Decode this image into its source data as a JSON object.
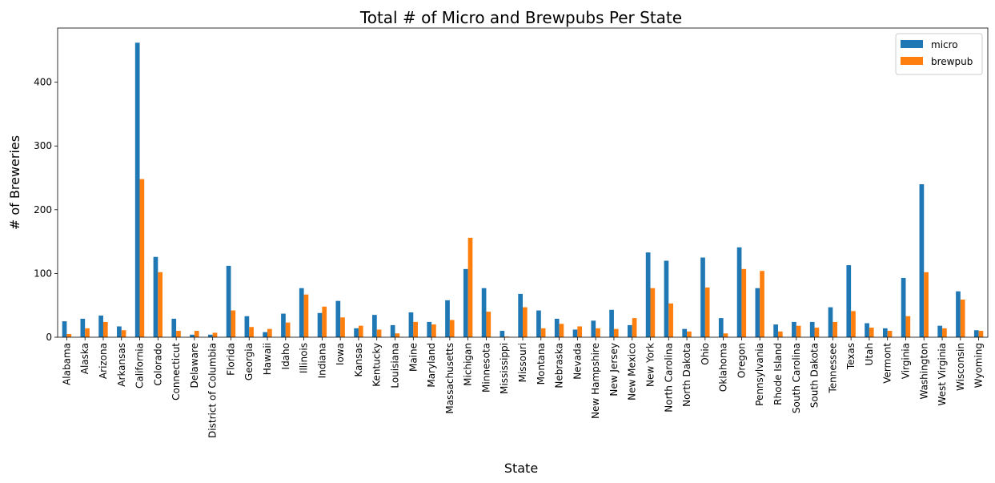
{
  "chart_data": {
    "type": "bar",
    "title": "Total # of Micro and Brewpubs Per State",
    "xlabel": "State",
    "ylabel": "# of Breweries",
    "ylim": [
      0,
      485
    ],
    "yticks": [
      0,
      100,
      200,
      300,
      400
    ],
    "grid": false,
    "legend_position": "top-right",
    "categories": [
      "Alabama",
      "Alaska",
      "Arizona",
      "Arkansas",
      "California",
      "Colorado",
      "Connecticut",
      "Delaware",
      "District of Columbia",
      "Florida",
      "Georgia",
      "Hawaii",
      "Idaho",
      "Illinois",
      "Indiana",
      "Iowa",
      "Kansas",
      "Kentucky",
      "Louisiana",
      "Maine",
      "Maryland",
      "Massachusetts",
      "Michigan",
      "Minnesota",
      "Mississippi",
      "Missouri",
      "Montana",
      "Nebraska",
      "Nevada",
      "New Hampshire",
      "New Jersey",
      "New Mexico",
      "New York",
      "North Carolina",
      "North Dakota",
      "Ohio",
      "Oklahoma",
      "Oregon",
      "Pennsylvania",
      "Rhode Island",
      "South Carolina",
      "South Dakota",
      "Tennessee",
      "Texas",
      "Utah",
      "Vermont",
      "Virginia",
      "Washington",
      "West Virginia",
      "Wisconsin",
      "Wyoming"
    ],
    "series": [
      {
        "name": "micro",
        "color": "#1f77b4",
        "values": [
          25,
          29,
          34,
          17,
          462,
          126,
          29,
          4,
          4,
          112,
          33,
          8,
          37,
          77,
          38,
          57,
          14,
          35,
          19,
          39,
          24,
          58,
          107,
          77,
          10,
          68,
          42,
          29,
          12,
          26,
          43,
          19,
          133,
          120,
          13,
          125,
          30,
          141,
          77,
          20,
          24,
          24,
          47,
          113,
          22,
          14,
          93,
          240,
          18,
          72,
          11
        ]
      },
      {
        "name": "brewpub",
        "color": "#ff7f0e",
        "values": [
          5,
          14,
          24,
          11,
          248,
          102,
          10,
          10,
          7,
          42,
          16,
          13,
          23,
          67,
          48,
          31,
          18,
          12,
          6,
          24,
          20,
          27,
          156,
          40,
          1,
          47,
          14,
          21,
          17,
          14,
          13,
          30,
          77,
          53,
          9,
          78,
          6,
          107,
          104,
          9,
          18,
          15,
          24,
          41,
          15,
          10,
          33,
          102,
          14,
          59,
          10
        ]
      }
    ]
  }
}
